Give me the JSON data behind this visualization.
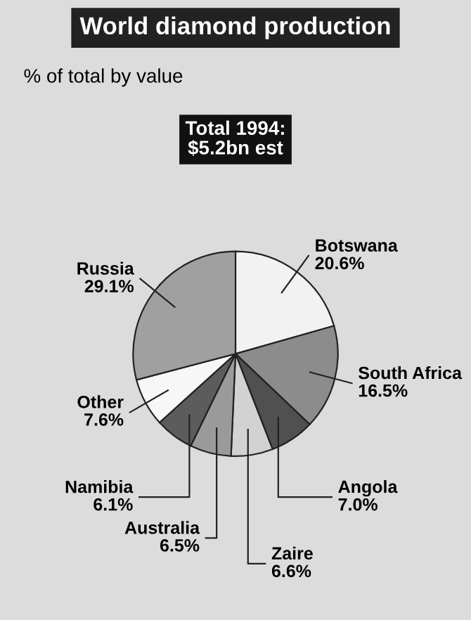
{
  "chart_data": {
    "type": "pie",
    "title": "World diamond production",
    "subtitle": "% of total by value",
    "categories": [
      "Botswana",
      "South Africa",
      "Angola",
      "Zaire",
      "Australia",
      "Namibia",
      "Other",
      "Russia"
    ],
    "values": [
      20.6,
      16.5,
      7.0,
      6.6,
      6.5,
      6.1,
      7.6,
      29.1
    ],
    "value_labels": [
      "20.6%",
      "16.5%",
      "7.0%",
      "6.6%",
      "6.5%",
      "6.1%",
      "7.6%",
      "29.1%"
    ],
    "colors": [
      "#f2f2f2",
      "#8c8c8c",
      "#505050",
      "#d2d2d2",
      "#9a9a9a",
      "#5c5c5c",
      "#f7f7f7",
      "#a0a0a0"
    ],
    "annotations": [
      "Total 1994:\n$5.2bn est"
    ]
  }
}
